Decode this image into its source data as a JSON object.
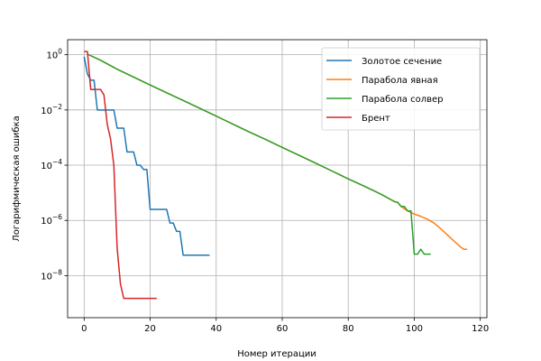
{
  "chart_data": {
    "type": "line",
    "xlabel": "Номер итерации",
    "ylabel": "Логарифмическая ошибка",
    "yscale": "log",
    "xlim": [
      -5,
      122
    ],
    "ylim": [
      3e-10,
      3.5
    ],
    "grid": true,
    "legend_position": "top-right",
    "x_ticks": [
      0,
      20,
      40,
      60,
      80,
      100,
      120
    ],
    "y_ticks": [
      {
        "value": 1,
        "base": "10",
        "exp": "0"
      },
      {
        "value": 0.01,
        "base": "10",
        "exp": "−2"
      },
      {
        "value": 0.0001,
        "base": "10",
        "exp": "−4"
      },
      {
        "value": 1e-06,
        "base": "10",
        "exp": "−6"
      },
      {
        "value": 1e-08,
        "base": "10",
        "exp": "−8"
      }
    ],
    "series": [
      {
        "name": "Золотое сечение",
        "color": "#1f77b4",
        "points": [
          [
            0,
            0.85
          ],
          [
            1,
            0.2
          ],
          [
            2,
            0.12
          ],
          [
            3,
            0.12
          ],
          [
            4,
            0.01
          ],
          [
            5,
            0.01
          ],
          [
            6,
            0.01
          ],
          [
            7,
            0.01
          ],
          [
            8,
            0.01
          ],
          [
            9,
            0.01
          ],
          [
            10,
            0.0022
          ],
          [
            11,
            0.0022
          ],
          [
            12,
            0.0022
          ],
          [
            13,
            0.0003
          ],
          [
            14,
            0.0003
          ],
          [
            15,
            0.0003
          ],
          [
            16,
            0.0001
          ],
          [
            17,
            0.0001
          ],
          [
            18,
            7e-05
          ],
          [
            19,
            7e-05
          ],
          [
            20,
            2.5e-06
          ],
          [
            21,
            2.5e-06
          ],
          [
            22,
            2.5e-06
          ],
          [
            23,
            2.5e-06
          ],
          [
            24,
            2.5e-06
          ],
          [
            25,
            2.5e-06
          ],
          [
            26,
            8e-07
          ],
          [
            27,
            8e-07
          ],
          [
            28,
            4e-07
          ],
          [
            29,
            4e-07
          ],
          [
            30,
            5.5e-08
          ],
          [
            31,
            5.5e-08
          ],
          [
            32,
            5.5e-08
          ],
          [
            33,
            5.5e-08
          ],
          [
            34,
            5.5e-08
          ],
          [
            35,
            5.5e-08
          ],
          [
            36,
            5.5e-08
          ],
          [
            37,
            5.5e-08
          ],
          [
            38,
            5.5e-08
          ]
        ]
      },
      {
        "name": "Парабола явная",
        "color": "#ff7f0e",
        "points": [
          [
            1,
            1.05
          ],
          [
            5,
            0.63
          ],
          [
            10,
            0.3
          ],
          [
            15,
            0.155
          ],
          [
            20,
            0.08
          ],
          [
            25,
            0.042
          ],
          [
            30,
            0.022
          ],
          [
            35,
            0.0115
          ],
          [
            40,
            0.006
          ],
          [
            45,
            0.0031
          ],
          [
            50,
            0.0016
          ],
          [
            55,
            0.00085
          ],
          [
            60,
            0.00044
          ],
          [
            65,
            0.00023
          ],
          [
            70,
            0.00012
          ],
          [
            75,
            6.2e-05
          ],
          [
            80,
            3.2e-05
          ],
          [
            85,
            1.7e-05
          ],
          [
            90,
            8.8e-06
          ],
          [
            94,
            4.8e-06
          ],
          [
            95,
            4.5e-06
          ],
          [
            96,
            3.2e-06
          ],
          [
            98,
            2.2e-06
          ],
          [
            100,
            1.7e-06
          ],
          [
            102,
            1.4e-06
          ],
          [
            104,
            1.1e-06
          ],
          [
            106,
            8e-07
          ],
          [
            108,
            5e-07
          ],
          [
            110,
            3e-07
          ],
          [
            112,
            1.8e-07
          ],
          [
            114,
            1.1e-07
          ],
          [
            115,
            9e-08
          ],
          [
            116,
            9e-08
          ]
        ]
      },
      {
        "name": "Парабола солвер",
        "color": "#2ca02c",
        "points": [
          [
            1,
            1.05
          ],
          [
            5,
            0.63
          ],
          [
            10,
            0.3
          ],
          [
            15,
            0.155
          ],
          [
            20,
            0.08
          ],
          [
            25,
            0.042
          ],
          [
            30,
            0.022
          ],
          [
            35,
            0.0115
          ],
          [
            40,
            0.006
          ],
          [
            45,
            0.0031
          ],
          [
            50,
            0.0016
          ],
          [
            55,
            0.00085
          ],
          [
            60,
            0.00044
          ],
          [
            65,
            0.00023
          ],
          [
            70,
            0.00012
          ],
          [
            75,
            6.2e-05
          ],
          [
            80,
            3.2e-05
          ],
          [
            85,
            1.7e-05
          ],
          [
            90,
            8.8e-06
          ],
          [
            94,
            4.8e-06
          ],
          [
            95,
            4.5e-06
          ],
          [
            96,
            3.2e-06
          ],
          [
            97,
            3.2e-06
          ],
          [
            98,
            2.2e-06
          ],
          [
            99,
            2.2e-06
          ],
          [
            100,
            6e-08
          ],
          [
            101,
            6e-08
          ],
          [
            102,
            9e-08
          ],
          [
            103,
            6e-08
          ],
          [
            104,
            6e-08
          ],
          [
            105,
            6e-08
          ]
        ]
      },
      {
        "name": "Брент",
        "color": "#d62728",
        "points": [
          [
            0,
            1.3
          ],
          [
            1,
            1.3
          ],
          [
            2,
            0.055
          ],
          [
            3,
            0.055
          ],
          [
            4,
            0.055
          ],
          [
            5,
            0.055
          ],
          [
            6,
            0.035
          ],
          [
            7,
            0.003
          ],
          [
            8,
            0.0009
          ],
          [
            9,
            0.0001
          ],
          [
            10,
            1e-07
          ],
          [
            11,
            5e-09
          ],
          [
            12,
            1.5e-09
          ],
          [
            13,
            1.5e-09
          ],
          [
            14,
            1.5e-09
          ],
          [
            15,
            1.5e-09
          ],
          [
            16,
            1.5e-09
          ],
          [
            17,
            1.5e-09
          ],
          [
            18,
            1.5e-09
          ],
          [
            19,
            1.5e-09
          ],
          [
            20,
            1.5e-09
          ],
          [
            21,
            1.5e-09
          ],
          [
            22,
            1.5e-09
          ]
        ]
      }
    ]
  }
}
